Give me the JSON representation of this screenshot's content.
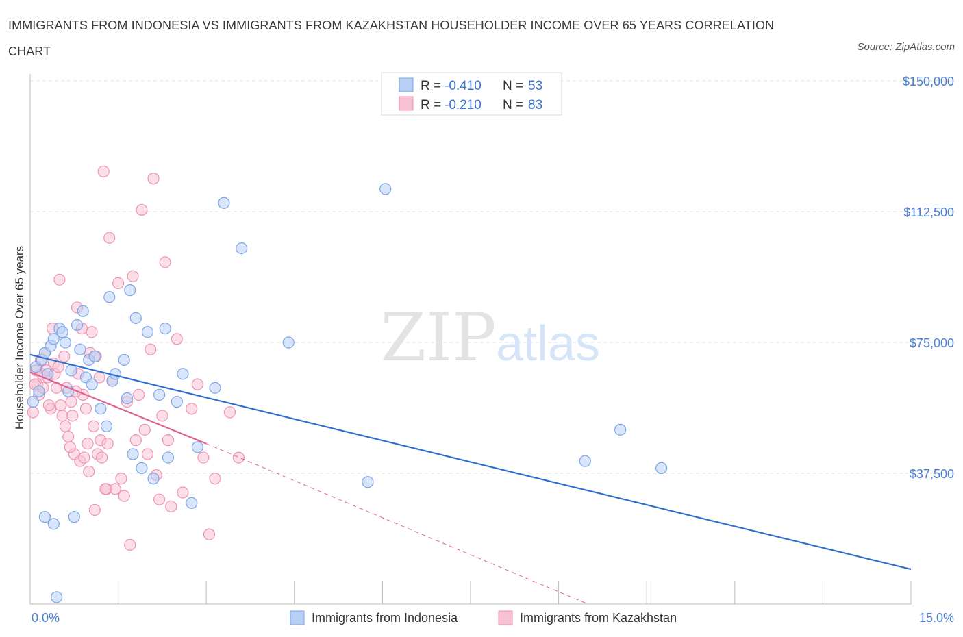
{
  "title": "IMMIGRANTS FROM INDONESIA VS IMMIGRANTS FROM KAZAKHSTAN HOUSEHOLDER INCOME OVER 65 YEARS CORRELATION CHART",
  "source": "Source: ZipAtlas.com",
  "watermark": {
    "zip": "ZIP",
    "atlas": "atlas"
  },
  "colors": {
    "indonesia_fill": "#b8d0f5",
    "indonesia_stroke": "#7aa5e6",
    "indonesia_line": "#2f6fd0",
    "kazakhstan_fill": "#f7c3d4",
    "kazakhstan_stroke": "#ee93b0",
    "kazakhstan_line": "#e0608e",
    "tick_text": "#4a7fd1",
    "grid": "#e2e2e2"
  },
  "legend_top": [
    {
      "r_label": "R =",
      "r_value": "-0.410",
      "n_label": "N =",
      "n_value": "53"
    },
    {
      "r_label": "R =",
      "r_value": "-0.210",
      "n_label": "N =",
      "n_value": "83"
    }
  ],
  "chart_data": {
    "type": "scatter",
    "title": "IMMIGRANTS FROM INDONESIA VS IMMIGRANTS FROM KAZAKHSTAN HOUSEHOLDER INCOME OVER 65 YEARS CORRELATION CHART",
    "xlabel": "",
    "ylabel": "Householder Income Over 65 years",
    "xlim": [
      0,
      15
    ],
    "ylim": [
      0,
      150000
    ],
    "x_tick_labels": [
      "0.0%",
      "15.0%"
    ],
    "y_ticks": [
      37500,
      75000,
      112500,
      150000
    ],
    "y_tick_labels": [
      "$37,500",
      "$75,000",
      "$112,500",
      "$150,000"
    ],
    "grid": true,
    "legend": "top-center",
    "series": [
      {
        "name": "Immigrants from Indonesia",
        "x": [
          0.05,
          0.1,
          0.15,
          0.2,
          0.25,
          0.3,
          0.35,
          0.4,
          0.5,
          0.55,
          0.6,
          0.65,
          0.7,
          0.8,
          0.85,
          0.9,
          0.95,
          1.0,
          1.05,
          1.1,
          1.2,
          1.3,
          1.4,
          1.45,
          1.6,
          1.65,
          1.7,
          1.75,
          1.8,
          1.9,
          2.0,
          2.1,
          2.2,
          2.3,
          2.35,
          2.5,
          2.6,
          2.75,
          2.85,
          3.15,
          3.3,
          3.6,
          4.4,
          5.75,
          6.05,
          9.45,
          10.05,
          10.75,
          0.4,
          0.45,
          1.35,
          0.25,
          0.75
        ],
        "y": [
          58000,
          68000,
          61000,
          70000,
          72000,
          66000,
          74000,
          76000,
          79000,
          78000,
          75000,
          61000,
          67000,
          80000,
          73000,
          84000,
          65000,
          70000,
          63000,
          71000,
          56000,
          51000,
          64000,
          66000,
          70000,
          59000,
          90000,
          43000,
          82000,
          39000,
          78000,
          36000,
          60000,
          79000,
          42000,
          58000,
          66000,
          29000,
          45000,
          62000,
          115000,
          102000,
          75000,
          35000,
          119000,
          41000,
          50000,
          39000,
          23000,
          2000,
          88000,
          25000,
          25000
        ]
      },
      {
        "name": "Immigrants from Kazakhstan",
        "x": [
          0.05,
          0.1,
          0.12,
          0.15,
          0.18,
          0.2,
          0.25,
          0.3,
          0.35,
          0.4,
          0.45,
          0.5,
          0.55,
          0.6,
          0.65,
          0.7,
          0.75,
          0.8,
          0.85,
          0.9,
          0.95,
          1.0,
          1.05,
          1.1,
          1.15,
          1.2,
          1.25,
          1.3,
          1.35,
          1.4,
          1.45,
          1.5,
          1.55,
          1.6,
          1.65,
          1.7,
          1.75,
          1.8,
          1.85,
          1.9,
          1.95,
          2.0,
          2.05,
          2.1,
          2.15,
          2.2,
          2.25,
          2.3,
          2.35,
          2.4,
          2.5,
          2.6,
          2.75,
          2.85,
          2.95,
          3.05,
          3.15,
          3.4,
          3.55,
          0.08,
          0.22,
          0.28,
          0.32,
          0.38,
          0.42,
          0.48,
          0.52,
          0.58,
          0.62,
          0.68,
          0.72,
          0.78,
          0.82,
          0.88,
          0.92,
          0.98,
          1.02,
          1.08,
          1.12,
          1.18,
          1.22,
          1.28,
          1.32
        ],
        "y": [
          55000,
          67000,
          63000,
          60000,
          70000,
          66000,
          72000,
          65000,
          56000,
          69000,
          62000,
          93000,
          54000,
          51000,
          48000,
          58000,
          43000,
          85000,
          41000,
          60000,
          56000,
          38000,
          78000,
          27000,
          43000,
          47000,
          124000,
          33000,
          105000,
          64000,
          33000,
          92000,
          36000,
          31000,
          58000,
          17000,
          94000,
          47000,
          60000,
          113000,
          50000,
          43000,
          73000,
          122000,
          37000,
          30000,
          54000,
          98000,
          47000,
          28000,
          76000,
          32000,
          56000,
          63000,
          42000,
          20000,
          36000,
          55000,
          42000,
          63000,
          62000,
          67000,
          57000,
          79000,
          66000,
          68000,
          57000,
          71000,
          62000,
          45000,
          54000,
          61000,
          66000,
          79000,
          42000,
          46000,
          72000,
          51000,
          71000,
          65000,
          42000,
          33000,
          46000
        ]
      }
    ],
    "trend_lines": [
      {
        "series": "Immigrants from Indonesia",
        "x": [
          0,
          15
        ],
        "y": [
          71500,
          10000
        ],
        "style": "solid"
      },
      {
        "series": "Immigrants from Kazakhstan",
        "x": [
          0,
          3.0
        ],
        "y": [
          66500,
          46000
        ],
        "style": "solid"
      },
      {
        "series": "Immigrants from Kazakhstan",
        "x": [
          3.0,
          9.5
        ],
        "y": [
          46000,
          0
        ],
        "style": "dashed"
      }
    ]
  }
}
